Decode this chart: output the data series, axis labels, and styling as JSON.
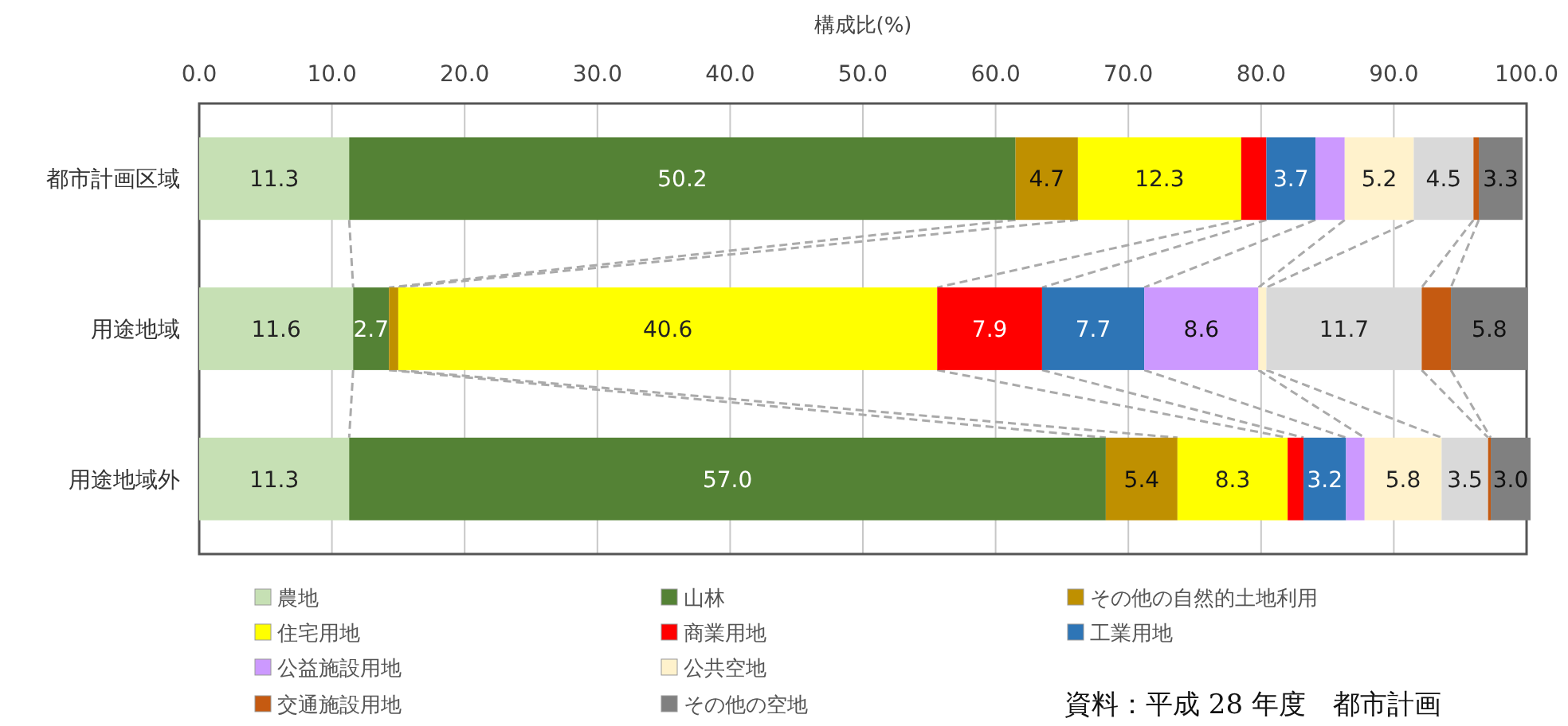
{
  "chart_data": {
    "type": "bar",
    "orientation": "horizontal",
    "stacked": true,
    "xlabel": "構成比(%)",
    "categories": [
      "都市計画区域",
      "用途地域",
      "用途地域外"
    ],
    "xlim": [
      0,
      100
    ],
    "xticks": [
      {
        "value": 0,
        "label": "0.0"
      },
      {
        "value": 10,
        "label": "10.0"
      },
      {
        "value": 20,
        "label": "20.0"
      },
      {
        "value": 30,
        "label": "30.0"
      },
      {
        "value": 40,
        "label": "40.0"
      },
      {
        "value": 50,
        "label": "50.0"
      },
      {
        "value": 60,
        "label": "60.0"
      },
      {
        "value": 70,
        "label": "70.0"
      },
      {
        "value": 80,
        "label": "80.0"
      },
      {
        "value": 90,
        "label": "90.0"
      },
      {
        "value": 100,
        "label": "100.0"
      }
    ],
    "grid": "x",
    "legend": "bottom",
    "series": [
      {
        "name": "農地",
        "color": "#c6e0b4",
        "values": [
          11.3,
          11.6,
          11.3
        ],
        "value_labels": [
          "11.3",
          "11.6",
          "11.3"
        ]
      },
      {
        "name": "山林",
        "color": "#548235",
        "values": [
          50.2,
          2.7,
          57.0
        ],
        "value_labels": [
          "50.2",
          "2.7",
          "57.0"
        ]
      },
      {
        "name": "その他の自然的土地利用",
        "color": "#bf9000",
        "values": [
          4.7,
          0.7,
          5.4
        ],
        "value_labels": [
          "4.7",
          null,
          "5.4"
        ]
      },
      {
        "name": "住宅用地",
        "color": "#ffff00",
        "values": [
          12.3,
          40.6,
          8.3
        ],
        "value_labels": [
          "12.3",
          "40.6",
          "8.3"
        ]
      },
      {
        "name": "商業用地",
        "color": "#ff0000",
        "values": [
          1.9,
          7.9,
          1.2
        ],
        "value_labels": [
          null,
          "7.9",
          null
        ]
      },
      {
        "name": "工業用地",
        "color": "#2e75b6",
        "values": [
          3.7,
          7.7,
          3.2
        ],
        "value_labels": [
          "3.7",
          "7.7",
          "3.2"
        ]
      },
      {
        "name": "公益施設用地",
        "color": "#cc99ff",
        "values": [
          2.2,
          8.6,
          1.4
        ],
        "value_labels": [
          null,
          "8.6",
          null
        ]
      },
      {
        "name": "公共空地",
        "color": "#fff2cc",
        "values": [
          5.2,
          0.6,
          5.8
        ],
        "value_labels": [
          "5.2",
          null,
          "5.8"
        ]
      },
      {
        "color": "#d9d9d9",
        "values": [
          4.5,
          11.7,
          3.5
        ],
        "value_labels": [
          "4.5",
          "11.7",
          "3.5"
        ]
      },
      {
        "name": "交通施設用地",
        "color": "#c55a11",
        "values": [
          0.4,
          2.2,
          0.2
        ],
        "value_labels": [
          null,
          null,
          null
        ]
      },
      {
        "name": "その他の空地",
        "color": "#808080",
        "values": [
          3.3,
          5.8,
          3.0
        ],
        "value_labels": [
          "3.3",
          "5.8",
          "3.0"
        ]
      }
    ],
    "annotations": [
      "資料：平成 28 年度　都市計画"
    ]
  }
}
